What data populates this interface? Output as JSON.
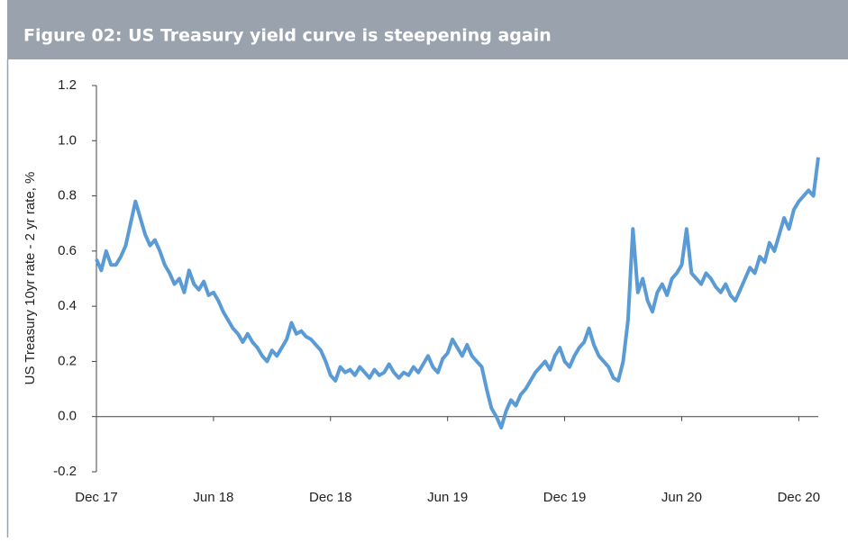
{
  "chart_data": {
    "type": "line",
    "title": "Figure 02: US Treasury yield curve is steepening again",
    "y_label": "US Treasury 10yr rate - 2 yr rate, %",
    "categories": [
      "Dec 17",
      null,
      null,
      null,
      null,
      null,
      null,
      null,
      null,
      null,
      null,
      null,
      null,
      null,
      null,
      null,
      null,
      null,
      null,
      null,
      null,
      null,
      null,
      null,
      "Jun 18",
      null,
      null,
      null,
      null,
      null,
      null,
      null,
      null,
      null,
      null,
      null,
      null,
      null,
      null,
      null,
      null,
      null,
      null,
      null,
      null,
      null,
      null,
      null,
      "Dec 18",
      null,
      null,
      null,
      null,
      null,
      null,
      null,
      null,
      null,
      null,
      null,
      null,
      null,
      null,
      null,
      null,
      null,
      null,
      null,
      null,
      null,
      null,
      null,
      "Jun 19",
      null,
      null,
      null,
      null,
      null,
      null,
      null,
      null,
      null,
      null,
      null,
      null,
      null,
      null,
      null,
      null,
      null,
      null,
      null,
      null,
      null,
      null,
      null,
      "Dec 19",
      null,
      null,
      null,
      null,
      null,
      null,
      null,
      null,
      null,
      null,
      null,
      null,
      null,
      null,
      null,
      null,
      null,
      null,
      null,
      null,
      null,
      null,
      null,
      "Jun 20",
      null,
      null,
      null,
      null,
      null,
      null,
      null,
      null,
      null,
      null,
      null,
      null,
      null,
      null,
      null,
      null,
      null,
      null,
      null,
      null,
      null,
      null,
      null,
      "Dec 20",
      null,
      null,
      null,
      null
    ],
    "series": [
      {
        "name": "10yr - 2yr",
        "color": "#5b9bd5",
        "values": [
          0.57,
          0.53,
          0.6,
          0.55,
          0.55,
          0.58,
          0.62,
          0.7,
          0.78,
          0.72,
          0.66,
          0.62,
          0.64,
          0.6,
          0.55,
          0.52,
          0.48,
          0.5,
          0.45,
          0.53,
          0.48,
          0.46,
          0.49,
          0.44,
          0.45,
          0.42,
          0.38,
          0.35,
          0.32,
          0.3,
          0.27,
          0.3,
          0.27,
          0.25,
          0.22,
          0.2,
          0.24,
          0.22,
          0.25,
          0.28,
          0.34,
          0.3,
          0.31,
          0.29,
          0.28,
          0.26,
          0.24,
          0.2,
          0.15,
          0.13,
          0.18,
          0.16,
          0.17,
          0.15,
          0.18,
          0.16,
          0.14,
          0.17,
          0.15,
          0.16,
          0.19,
          0.16,
          0.14,
          0.16,
          0.15,
          0.18,
          0.16,
          0.19,
          0.22,
          0.18,
          0.16,
          0.21,
          0.23,
          0.28,
          0.25,
          0.22,
          0.26,
          0.22,
          0.2,
          0.18,
          0.1,
          0.03,
          0.0,
          -0.04,
          0.02,
          0.06,
          0.04,
          0.08,
          0.1,
          0.13,
          0.16,
          0.18,
          0.2,
          0.17,
          0.22,
          0.25,
          0.2,
          0.18,
          0.22,
          0.25,
          0.27,
          0.32,
          0.26,
          0.22,
          0.2,
          0.18,
          0.14,
          0.13,
          0.2,
          0.35,
          0.68,
          0.45,
          0.5,
          0.42,
          0.38,
          0.45,
          0.48,
          0.44,
          0.5,
          0.52,
          0.55,
          0.68,
          0.52,
          0.5,
          0.48,
          0.52,
          0.5,
          0.47,
          0.45,
          0.48,
          0.44,
          0.42,
          0.46,
          0.5,
          0.54,
          0.52,
          0.58,
          0.56,
          0.63,
          0.6,
          0.66,
          0.72,
          0.68,
          0.75,
          0.78,
          0.8,
          0.82,
          0.8,
          0.94
        ]
      }
    ],
    "ylim": [
      -0.2,
      1.2
    ],
    "yticks": [
      -0.2,
      {
        "value": 0,
        "label": "0.0"
      },
      0.2,
      0.4,
      0.6,
      0.8,
      {
        "value": 1,
        "label": "1.0"
      },
      1.2
    ]
  }
}
